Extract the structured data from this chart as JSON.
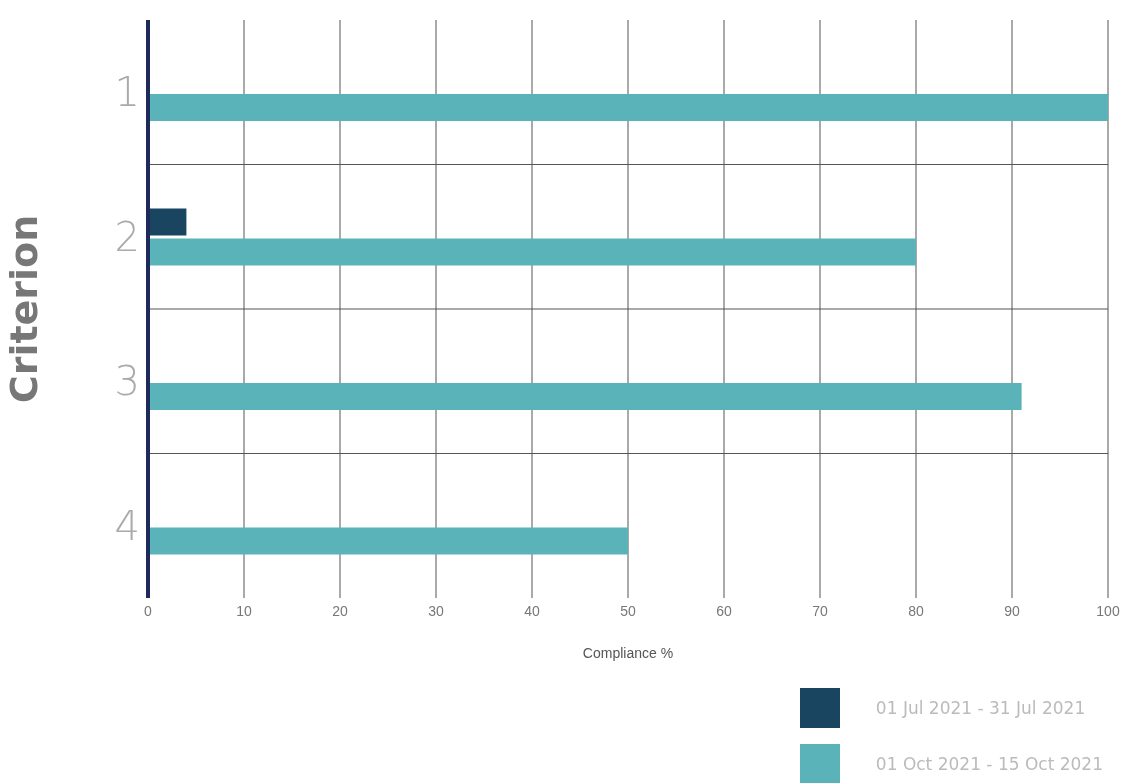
{
  "chart_data": {
    "type": "bar",
    "orientation": "horizontal",
    "ylabel": "Criterion",
    "xlabel": "Compliance %",
    "categories": [
      "1",
      "2",
      "3",
      "4"
    ],
    "series": [
      {
        "name": "01 Jul 2021 - 31 Jul 2021",
        "color": "#1a4560",
        "values": [
          null,
          4,
          null,
          null
        ]
      },
      {
        "name": "01 Oct 2021 - 15 Oct 2021",
        "color": "#5ab3b9",
        "values": [
          100,
          80,
          91,
          50
        ]
      }
    ],
    "xlim": [
      0,
      100
    ],
    "xticks": [
      0,
      10,
      20,
      30,
      40,
      50,
      60,
      70,
      80,
      90,
      100
    ],
    "grid": true,
    "legend": "bottom right"
  }
}
